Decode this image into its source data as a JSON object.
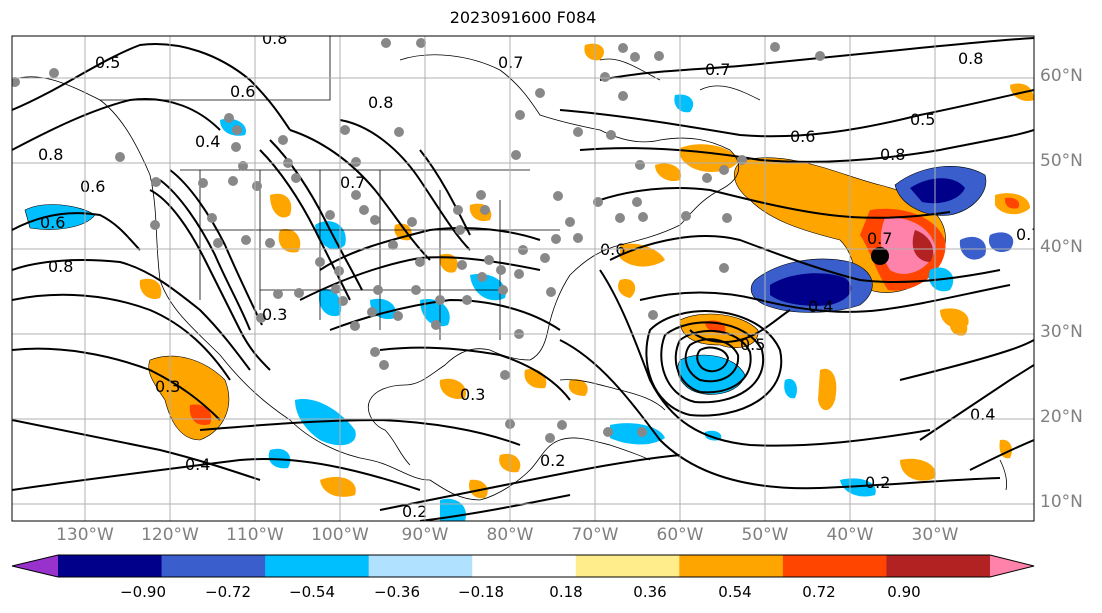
{
  "title": "2023091600 F084",
  "lat_labels": [
    "60°N",
    "50°N",
    "40°N",
    "30°N",
    "20°N",
    "10°N"
  ],
  "lon_labels": [
    "130°W",
    "120°W",
    "110°W",
    "100°W",
    "90°W",
    "80°W",
    "70°W",
    "60°W",
    "50°W",
    "40°W",
    "30°W"
  ],
  "colorbar": {
    "ticks": [
      "−0.90",
      "−0.72",
      "−0.54",
      "−0.36",
      "−0.18",
      "0.18",
      "0.36",
      "0.54",
      "0.72",
      "0.90"
    ],
    "colors": [
      "#9932cc",
      "#00008b",
      "#3a5fcd",
      "#00bfff",
      "#b0e2ff",
      "#ffffff",
      "#ffec8b",
      "#ffa500",
      "#ff4500",
      "#b22222",
      "#ff82ab"
    ]
  },
  "contour_labels": [
    "0.8",
    "0.7",
    "0.5",
    "0.6",
    "0.4",
    "0.8",
    "0.6",
    "0.6",
    "0.8",
    "0.7",
    "0.8",
    "0.6",
    "0.5",
    "0.8",
    "0.7",
    "0.4",
    "0.5",
    "0.3",
    "0.3",
    "0.4",
    "0.3",
    "0.2",
    "0.2",
    "0.2",
    "0.4",
    "0.7",
    "0.6",
    "0.8",
    "0.7"
  ],
  "marker_colors": {
    "gray": "#888888",
    "black": "#000000"
  }
}
